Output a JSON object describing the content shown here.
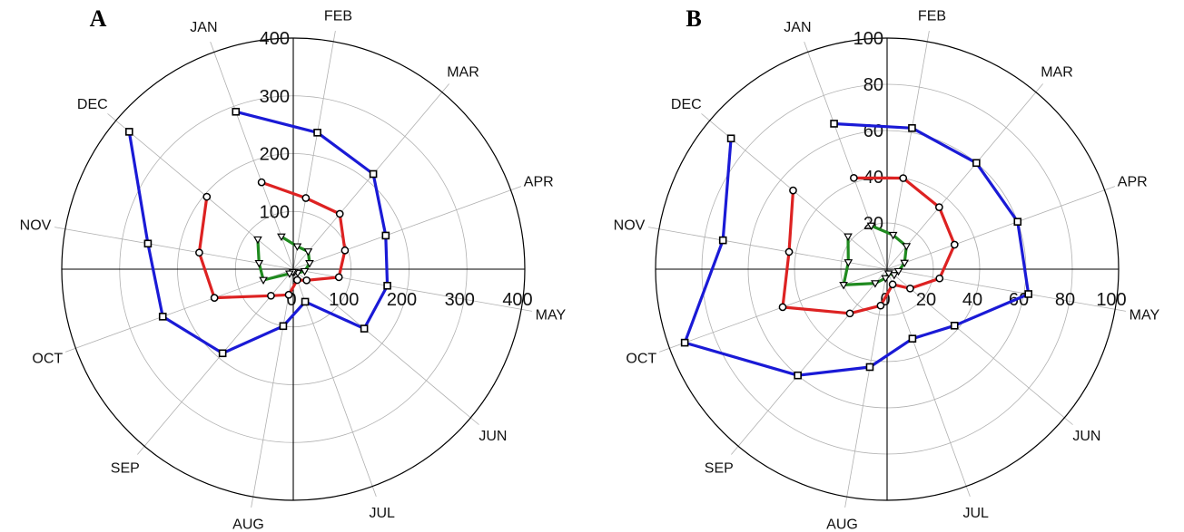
{
  "colors": {
    "blue": "#1a1ad6",
    "red": "#dd2222",
    "green": "#1f8a1f"
  },
  "chart_data": [
    {
      "type": "radar",
      "panel_label": "A",
      "title": "",
      "rlim": [
        0,
        400
      ],
      "r_ticks": [
        "0",
        "100",
        "200",
        "300",
        "400"
      ],
      "grid": true,
      "categories": [
        "JAN",
        "FEB",
        "MAR",
        "APR",
        "MAY",
        "JUN",
        "JUL",
        "AUG",
        "SEP",
        "OCT",
        "NOV",
        "DEC"
      ],
      "series": [
        {
          "color": "blue",
          "marker": "square",
          "values": [
            290,
            240,
            215,
            170,
            165,
            160,
            60,
            100,
            190,
            240,
            255,
            370
          ]
        },
        {
          "color": "red",
          "marker": "circle",
          "values": [
            160,
            125,
            125,
            95,
            80,
            30,
            20,
            45,
            60,
            145,
            165,
            195
          ]
        },
        {
          "color": "green",
          "marker": "triangle",
          "values": [
            60,
            40,
            40,
            30,
            20,
            10,
            5,
            5,
            10,
            55,
            60,
            80
          ]
        }
      ]
    },
    {
      "type": "radar",
      "panel_label": "B",
      "title": "",
      "rlim": [
        0,
        100
      ],
      "r_ticks": [
        "0",
        "20",
        "40",
        "60",
        "80",
        "100"
      ],
      "grid": true,
      "categories": [
        "JAN",
        "FEB",
        "MAR",
        "APR",
        "MAY",
        "JUN",
        "JUL",
        "AUG",
        "SEP",
        "OCT",
        "NOV",
        "DEC"
      ],
      "series": [
        {
          "color": "blue",
          "marker": "square",
          "values": [
            67,
            62,
            60,
            60,
            62,
            38,
            32,
            43,
            60,
            93,
            72,
            88
          ]
        },
        {
          "color": "red",
          "marker": "circle",
          "values": [
            42,
            40,
            35,
            31,
            23,
            13,
            7,
            16,
            25,
            48,
            43,
            53
          ]
        },
        {
          "color": "green",
          "marker": "triangle",
          "values": [
            20,
            15,
            13,
            8,
            5,
            4,
            2,
            4,
            8,
            20,
            17,
            22
          ]
        }
      ]
    }
  ]
}
